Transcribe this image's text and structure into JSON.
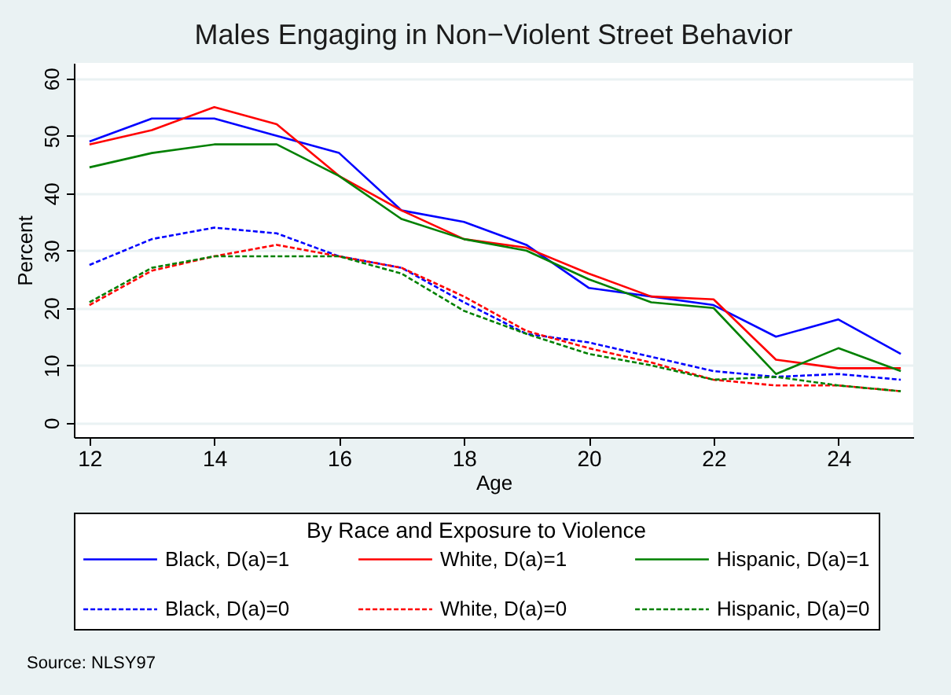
{
  "chart_data": {
    "type": "line",
    "title": "Males Engaging in Non−Violent Street Behavior",
    "xlabel": "Age",
    "ylabel": "Percent",
    "legend_title": "By Race and Exposure to Violence",
    "x": [
      12,
      13,
      14,
      15,
      16,
      17,
      18,
      19,
      20,
      21,
      22,
      23,
      24,
      25
    ],
    "series": [
      {
        "name": "Black, D(a)=1",
        "color": "#0000ff",
        "line_style": "solid",
        "values": [
          49,
          53,
          53,
          50,
          47,
          37,
          35,
          31,
          23.5,
          22,
          20.5,
          15,
          18,
          12
        ]
      },
      {
        "name": "White, D(a)=1",
        "color": "#ff0000",
        "line_style": "solid",
        "values": [
          48.5,
          51,
          55,
          52,
          43,
          37,
          32,
          30.5,
          26,
          22,
          21.5,
          11,
          9.5,
          9.5
        ]
      },
      {
        "name": "Hispanic, D(a)=1",
        "color": "#008000",
        "line_style": "solid",
        "values": [
          44.5,
          47,
          48.5,
          48.5,
          43,
          35.5,
          32,
          30,
          25,
          21,
          20,
          8.5,
          13,
          9
        ]
      },
      {
        "name": "Black, D(a)=0",
        "color": "#0000ff",
        "line_style": "dashed",
        "values": [
          27.5,
          32,
          34,
          33,
          29,
          27,
          21,
          15.5,
          14,
          11.5,
          9,
          8,
          8.5,
          7.5
        ]
      },
      {
        "name": "White, D(a)=0",
        "color": "#ff0000",
        "line_style": "dashed",
        "values": [
          20.5,
          26.5,
          29,
          31,
          29,
          27,
          22,
          16,
          13,
          10.5,
          7.5,
          6.5,
          6.5,
          5.5
        ]
      },
      {
        "name": "Hispanic, D(a)=0",
        "color": "#008000",
        "line_style": "dashed",
        "values": [
          21,
          27,
          29,
          29,
          29,
          26,
          19.5,
          15.5,
          12,
          10,
          7.5,
          8,
          6.5,
          5.5
        ]
      }
    ],
    "xlim": [
      11.75,
      25.2
    ],
    "xticks": [
      12,
      14,
      16,
      18,
      20,
      22,
      24
    ],
    "ylim": [
      -2.5,
      62.7
    ],
    "yticks": [
      0,
      10,
      20,
      30,
      40,
      50,
      60
    ],
    "grid": "y",
    "legend": "bottom",
    "annotations": [
      "Source:  NLSY97"
    ]
  }
}
